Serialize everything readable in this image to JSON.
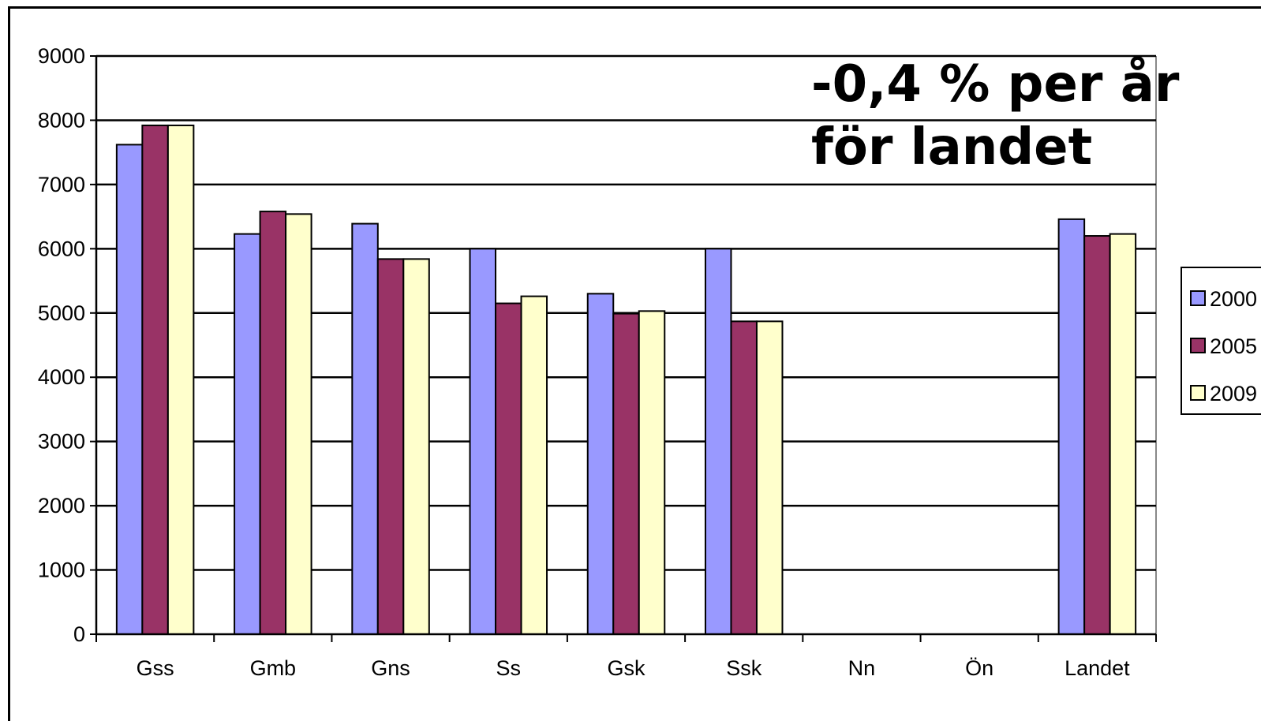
{
  "chart_data": {
    "type": "bar",
    "categories": [
      "Gss",
      "Gmb",
      "Gns",
      "Ss",
      "Gsk",
      "Ssk",
      "Nn",
      "Ön",
      "Landet"
    ],
    "series": [
      {
        "name": "2000",
        "color": "#9999ff",
        "values": [
          7620,
          6230,
          6390,
          6000,
          5300,
          6000,
          null,
          null,
          6460
        ]
      },
      {
        "name": "2005",
        "color": "#993366",
        "values": [
          7920,
          6580,
          5840,
          5150,
          4990,
          4870,
          null,
          null,
          6200
        ]
      },
      {
        "name": "2009",
        "color": "#ffffcc",
        "values": [
          7920,
          6540,
          5840,
          5260,
          5030,
          4870,
          null,
          null,
          6230
        ]
      }
    ],
    "ylim": [
      0,
      9000
    ],
    "yticks": [
      "0",
      "1000",
      "2000",
      "3000",
      "4000",
      "5000",
      "6000",
      "7000",
      "8000",
      "9000"
    ],
    "grid": true,
    "legend_position": "right",
    "annotation": [
      "-0,4 % per år",
      "för landet"
    ]
  }
}
